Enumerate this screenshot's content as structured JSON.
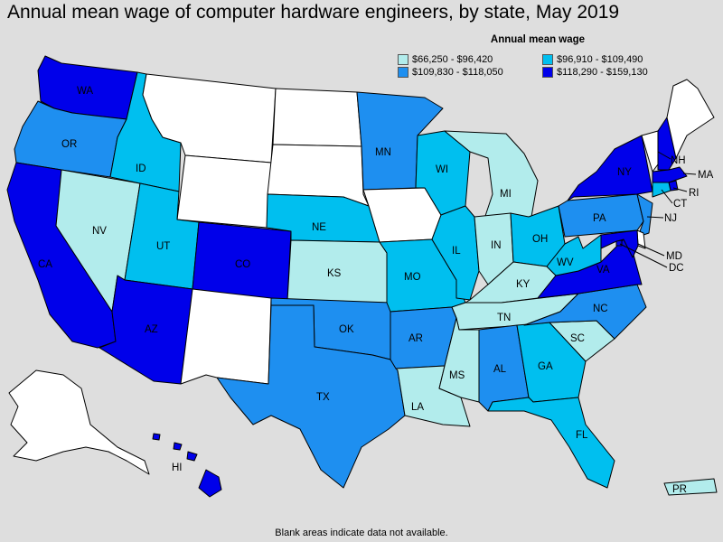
{
  "title": "Annual mean wage of computer hardware engineers, by state, May 2019",
  "legend": {
    "title": "Annual mean wage",
    "items": [
      {
        "label": "$66,250 - $96,420",
        "color": "#b2ecec"
      },
      {
        "label": "$96,910 - $109,490",
        "color": "#00bfef"
      },
      {
        "label": "$109,830 - $118,050",
        "color": "#1e8ff0"
      },
      {
        "label": "$118,290 - $159,130",
        "color": "#0000ea"
      }
    ]
  },
  "footnote": "Blank areas indicate data not available.",
  "colors": {
    "nodata": "#ffffff",
    "background": "#dedede"
  },
  "states": {
    "WA": {
      "label": "WA",
      "tier": 3
    },
    "OR": {
      "label": "OR",
      "tier": 2
    },
    "CA": {
      "label": "CA",
      "tier": 3
    },
    "NV": {
      "label": "NV",
      "tier": 0
    },
    "ID": {
      "label": "ID",
      "tier": 1
    },
    "MT": {
      "label": "",
      "tier": null
    },
    "WY": {
      "label": "",
      "tier": null
    },
    "UT": {
      "label": "UT",
      "tier": 1
    },
    "AZ": {
      "label": "AZ",
      "tier": 3
    },
    "CO": {
      "label": "CO",
      "tier": 3
    },
    "NM": {
      "label": "",
      "tier": null
    },
    "ND": {
      "label": "",
      "tier": null
    },
    "SD": {
      "label": "",
      "tier": null
    },
    "NE": {
      "label": "NE",
      "tier": 1
    },
    "KS": {
      "label": "KS",
      "tier": 0
    },
    "OK": {
      "label": "OK",
      "tier": 2
    },
    "TX": {
      "label": "TX",
      "tier": 2
    },
    "MN": {
      "label": "MN",
      "tier": 2
    },
    "IA": {
      "label": "",
      "tier": null
    },
    "MO": {
      "label": "MO",
      "tier": 1
    },
    "AR": {
      "label": "AR",
      "tier": 2
    },
    "LA": {
      "label": "LA",
      "tier": 0
    },
    "WI": {
      "label": "WI",
      "tier": 1
    },
    "IL": {
      "label": "IL",
      "tier": 1
    },
    "MI": {
      "label": "MI",
      "tier": 0
    },
    "IN": {
      "label": "IN",
      "tier": 0
    },
    "OH": {
      "label": "OH",
      "tier": 1
    },
    "KY": {
      "label": "KY",
      "tier": 0
    },
    "TN": {
      "label": "TN",
      "tier": 0
    },
    "MS": {
      "label": "MS",
      "tier": 0
    },
    "AL": {
      "label": "AL",
      "tier": 2
    },
    "GA": {
      "label": "GA",
      "tier": 1
    },
    "FL": {
      "label": "FL",
      "tier": 1
    },
    "SC": {
      "label": "SC",
      "tier": 0
    },
    "NC": {
      "label": "NC",
      "tier": 2
    },
    "VA": {
      "label": "VA",
      "tier": 3
    },
    "WV": {
      "label": "WV",
      "tier": 1
    },
    "PA": {
      "label": "PA",
      "tier": 2
    },
    "NY": {
      "label": "NY",
      "tier": 3
    },
    "VT": {
      "label": "",
      "tier": null
    },
    "NH": {
      "label": "NH",
      "tier": 3
    },
    "ME": {
      "label": "",
      "tier": null
    },
    "MA": {
      "label": "MA",
      "tier": 3
    },
    "RI": {
      "label": "RI",
      "tier": 3
    },
    "CT": {
      "label": "CT",
      "tier": 1
    },
    "NJ": {
      "label": "NJ",
      "tier": 2
    },
    "DE": {
      "label": "",
      "tier": null
    },
    "MD": {
      "label": "MD",
      "tier": 3
    },
    "DC": {
      "label": "DC",
      "tier": 3
    },
    "AK": {
      "label": "",
      "tier": null
    },
    "HI": {
      "label": "HI",
      "tier": 3
    },
    "PR": {
      "label": "PR",
      "tier": 0
    }
  }
}
